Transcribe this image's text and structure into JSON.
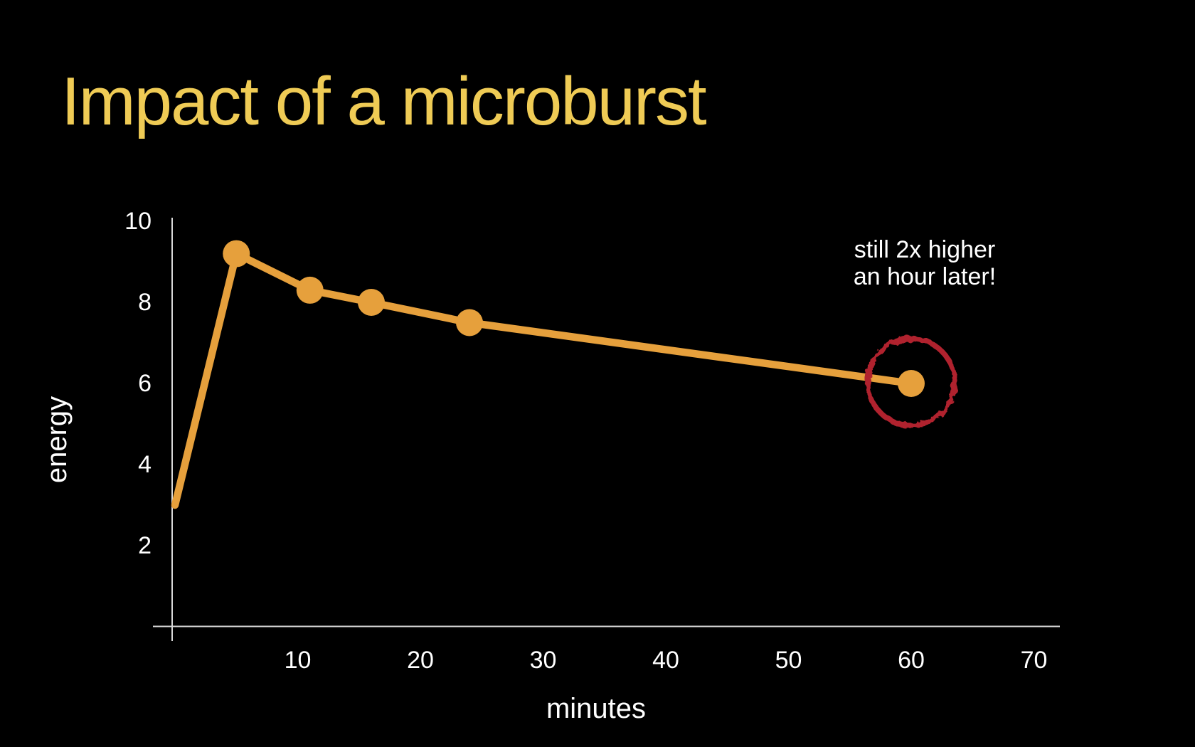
{
  "title": {
    "text": "Impact of a microburst"
  },
  "annotation": {
    "line1": "still 2x higher",
    "line2": "an hour later!"
  },
  "colors": {
    "background": "#000000",
    "title": "#EFCB55",
    "line": "#E6A03C",
    "marker": "#E6A03C",
    "highlight_circle": "#B0242F",
    "axis": "#D9D9D9",
    "labels": "#FFFFFF"
  },
  "chart_data": {
    "type": "line",
    "title": "Impact of a microburst",
    "xlabel": "minutes",
    "ylabel": "energy",
    "x": [
      0,
      5,
      11,
      16,
      24,
      60
    ],
    "y": [
      3,
      9.2,
      8.3,
      8.0,
      7.5,
      6.0
    ],
    "marker_points_x": [
      5,
      11,
      16,
      24,
      60
    ],
    "marker_points_y": [
      9.2,
      8.3,
      8.0,
      7.5,
      6.0
    ],
    "x_ticks": [
      10,
      20,
      30,
      40,
      50,
      60,
      70
    ],
    "y_ticks": [
      2,
      4,
      6,
      8,
      10
    ],
    "xlim": [
      0,
      72
    ],
    "ylim": [
      0,
      10.5
    ],
    "grid": false,
    "legend": false,
    "line_color": "#E6A03C",
    "annotation_text": "still 2x higher an hour later!",
    "annotation_target_x": 60,
    "annotation_target_y": 6
  }
}
